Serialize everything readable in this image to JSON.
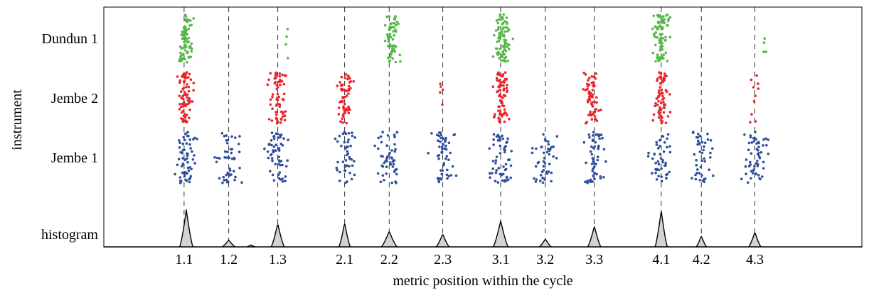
{
  "chart_data": {
    "type": "scatter",
    "title": "",
    "xlabel": "metric position within the cycle",
    "ylabel": "instrument",
    "x_ticks": [
      {
        "label": "1.1",
        "x": 1.0
      },
      {
        "label": "1.2",
        "x": 2.0
      },
      {
        "label": "1.3",
        "x": 3.1
      },
      {
        "label": "2.1",
        "x": 4.6
      },
      {
        "label": "2.2",
        "x": 5.6
      },
      {
        "label": "2.3",
        "x": 6.8
      },
      {
        "label": "3.1",
        "x": 8.1
      },
      {
        "label": "3.2",
        "x": 9.1
      },
      {
        "label": "3.3",
        "x": 10.2
      },
      {
        "label": "4.1",
        "x": 11.7
      },
      {
        "label": "4.2",
        "x": 12.6
      },
      {
        "label": "4.3",
        "x": 13.8
      }
    ],
    "xlim": [
      -0.8,
      16.2
    ],
    "rows": [
      "Dundun 1",
      "Jembe 2",
      "Jembe 1",
      "histogram"
    ],
    "series": [
      {
        "name": "Dundun 1",
        "color": "#55b848",
        "clusters": [
          {
            "x": 1.05,
            "n": 75,
            "spread": 0.08
          },
          {
            "x": 3.3,
            "n": 4,
            "spread": 0.03
          },
          {
            "x": 5.65,
            "n": 60,
            "spread": 0.08
          },
          {
            "x": 8.15,
            "n": 80,
            "spread": 0.09
          },
          {
            "x": 11.7,
            "n": 80,
            "spread": 0.08
          },
          {
            "x": 14.0,
            "n": 4,
            "spread": 0.03
          }
        ]
      },
      {
        "name": "Jembe 2",
        "color": "#e8262c",
        "clusters": [
          {
            "x": 1.05,
            "n": 70,
            "spread": 0.08
          },
          {
            "x": 3.1,
            "n": 65,
            "spread": 0.09
          },
          {
            "x": 4.6,
            "n": 60,
            "spread": 0.08
          },
          {
            "x": 6.75,
            "n": 5,
            "spread": 0.05
          },
          {
            "x": 8.1,
            "n": 75,
            "spread": 0.09
          },
          {
            "x": 10.15,
            "n": 60,
            "spread": 0.08
          },
          {
            "x": 11.7,
            "n": 70,
            "spread": 0.08
          },
          {
            "x": 13.75,
            "n": 10,
            "spread": 0.05
          }
        ]
      },
      {
        "name": "Jembe 1",
        "color": "#2f4f9e",
        "clusters": [
          {
            "x": 1.0,
            "n": 60,
            "spread": 0.12
          },
          {
            "x": 2.0,
            "n": 45,
            "spread": 0.15
          },
          {
            "x": 3.1,
            "n": 55,
            "spread": 0.14
          },
          {
            "x": 4.6,
            "n": 45,
            "spread": 0.13
          },
          {
            "x": 5.6,
            "n": 50,
            "spread": 0.13
          },
          {
            "x": 6.8,
            "n": 55,
            "spread": 0.13
          },
          {
            "x": 8.1,
            "n": 55,
            "spread": 0.13
          },
          {
            "x": 9.1,
            "n": 45,
            "spread": 0.13
          },
          {
            "x": 10.2,
            "n": 55,
            "spread": 0.12
          },
          {
            "x": 11.7,
            "n": 45,
            "spread": 0.12
          },
          {
            "x": 12.6,
            "n": 45,
            "spread": 0.12
          },
          {
            "x": 13.8,
            "n": 55,
            "spread": 0.12
          }
        ]
      }
    ],
    "histogram": {
      "fill": "#d3d3d3",
      "peaks": [
        {
          "x": 1.05,
          "h": 0.95,
          "w": 0.15
        },
        {
          "x": 2.0,
          "h": 0.18,
          "w": 0.15
        },
        {
          "x": 2.5,
          "h": 0.05,
          "w": 0.1
        },
        {
          "x": 3.1,
          "h": 0.6,
          "w": 0.15
        },
        {
          "x": 4.6,
          "h": 0.62,
          "w": 0.13
        },
        {
          "x": 5.6,
          "h": 0.4,
          "w": 0.18
        },
        {
          "x": 6.8,
          "h": 0.33,
          "w": 0.15
        },
        {
          "x": 8.1,
          "h": 0.67,
          "w": 0.17
        },
        {
          "x": 9.1,
          "h": 0.2,
          "w": 0.14
        },
        {
          "x": 10.2,
          "h": 0.53,
          "w": 0.15
        },
        {
          "x": 11.7,
          "h": 0.93,
          "w": 0.14
        },
        {
          "x": 12.6,
          "h": 0.28,
          "w": 0.12
        },
        {
          "x": 13.8,
          "h": 0.38,
          "w": 0.14
        }
      ]
    },
    "grid": "dashed vertical lines at tick positions",
    "legend": "none"
  }
}
